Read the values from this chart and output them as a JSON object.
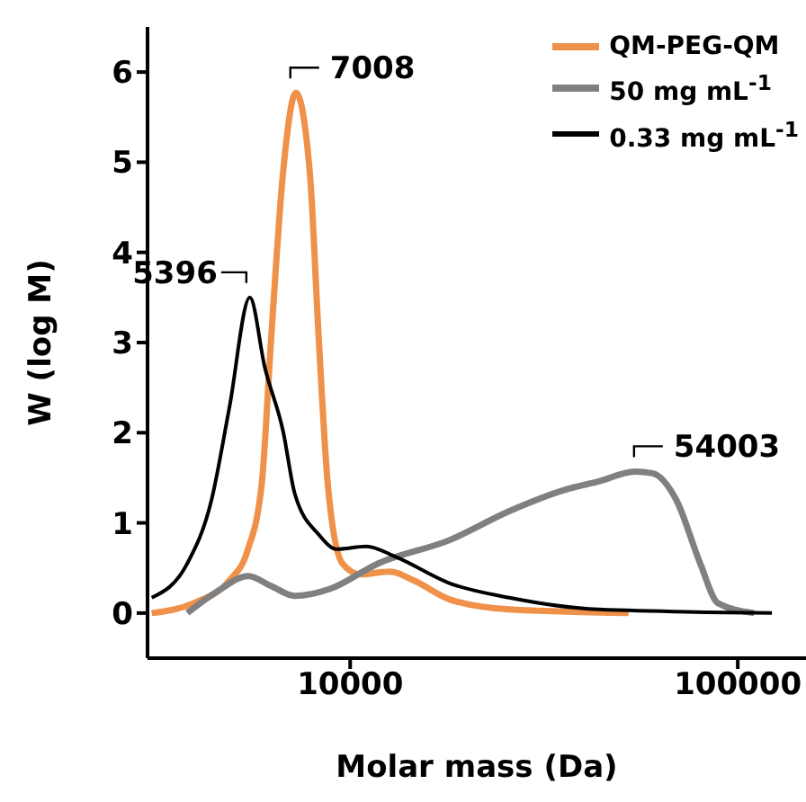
{
  "chart_data": {
    "type": "line",
    "xlabel": "Molar mass (Da)",
    "ylabel": "W (log M)",
    "log": "x",
    "xlim": [
      3000,
      150000
    ],
    "xticks": [
      10000,
      100000
    ],
    "ylim": [
      -0.5,
      6.5
    ],
    "yticks": [
      0,
      1,
      2,
      3,
      4,
      5,
      6
    ],
    "grid": false,
    "legend": "top right",
    "marker": "none",
    "line_style": "solid",
    "series": [
      {
        "name": "QM-PEG-QM",
        "color": "#f0914a",
        "x": [
          3076,
          3945,
          4875,
          5420,
          5915,
          6250,
          6710,
          7245,
          7870,
          8300,
          8750,
          9550,
          10620,
          12690,
          14620,
          18070,
          25740,
          52250
        ],
        "values": [
          0,
          0.11,
          0.36,
          0.68,
          1.44,
          3.03,
          4.88,
          5.77,
          4.88,
          3.03,
          1.44,
          0.55,
          0.43,
          0.46,
          0.36,
          0.15,
          0.04,
          0
        ]
      },
      {
        "name": "50 mg mL$^{-1}$",
        "color": "#808080",
        "x": [
          3800,
          4540,
          5460,
          6250,
          7200,
          8900,
          11810,
          18070,
          25740,
          36700,
          43800,
          54200,
          60250,
          69500,
          80000,
          88900,
          110200
        ],
        "values": [
          0,
          0.24,
          0.41,
          0.3,
          0.19,
          0.27,
          0.55,
          0.81,
          1.13,
          1.38,
          1.46,
          1.57,
          1.55,
          1.25,
          0.55,
          0.11,
          0
        ]
      },
      {
        "name": "0.33 mg mL$^{-1}$",
        "color": "#000000",
        "x": [
          3076,
          3800,
          4385,
          4875,
          5510,
          6025,
          6710,
          7200,
          8300,
          9230,
          11010,
          13150,
          18070,
          25740,
          43800,
          122500
        ],
        "values": [
          0.17,
          0.55,
          1.25,
          2.27,
          3.5,
          2.72,
          2.02,
          1.32,
          0.87,
          0.71,
          0.74,
          0.62,
          0.33,
          0.17,
          0.04,
          0
        ]
      }
    ],
    "annotations": [
      {
        "text": "7008",
        "x": 7008,
        "y": 5.77
      },
      {
        "text": "5396",
        "x": 5396,
        "y": 3.5
      },
      {
        "text": "54003",
        "x": 54003,
        "y": 1.57
      }
    ]
  }
}
